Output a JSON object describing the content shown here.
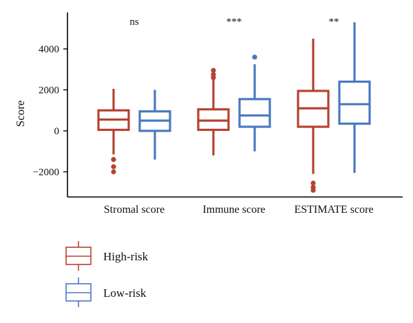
{
  "chart_data": {
    "type": "box",
    "ylabel": "Score",
    "xlabel": "",
    "ylim": [
      -3200,
      5500
    ],
    "yticks": [
      4000,
      2000,
      0,
      -2000
    ],
    "ytick_labels": [
      "4000",
      "2000",
      "0",
      "−2000"
    ],
    "categories": [
      "Stromal score",
      "Immune score",
      "ESTIMATE score"
    ],
    "significance": [
      "ns",
      "***",
      "**"
    ],
    "series": [
      {
        "name": "High-risk",
        "color": "#B5432F",
        "boxes": [
          {
            "whisker_low": -1150,
            "q1": 50,
            "median": 550,
            "q3": 1000,
            "whisker_high": 2050,
            "outliers": [
              -1400,
              -1750,
              -2000
            ]
          },
          {
            "whisker_low": -1200,
            "q1": 50,
            "median": 500,
            "q3": 1050,
            "whisker_high": 2500,
            "outliers": [
              2600,
              2750,
              2950
            ]
          },
          {
            "whisker_low": -2100,
            "q1": 200,
            "median": 1100,
            "q3": 1950,
            "whisker_high": 4500,
            "outliers": [
              -2550,
              -2750,
              -2900
            ]
          }
        ]
      },
      {
        "name": "Low-risk",
        "color": "#4A78C0",
        "boxes": [
          {
            "whisker_low": -1400,
            "q1": 0,
            "median": 500,
            "q3": 950,
            "whisker_high": 2000,
            "outliers": []
          },
          {
            "whisker_low": -1000,
            "q1": 200,
            "median": 750,
            "q3": 1550,
            "whisker_high": 3250,
            "outliers": [
              3600
            ]
          },
          {
            "whisker_low": -2050,
            "q1": 350,
            "median": 1300,
            "q3": 2400,
            "whisker_high": 5300,
            "outliers": []
          }
        ]
      }
    ],
    "legend_position": "bottom-left"
  }
}
